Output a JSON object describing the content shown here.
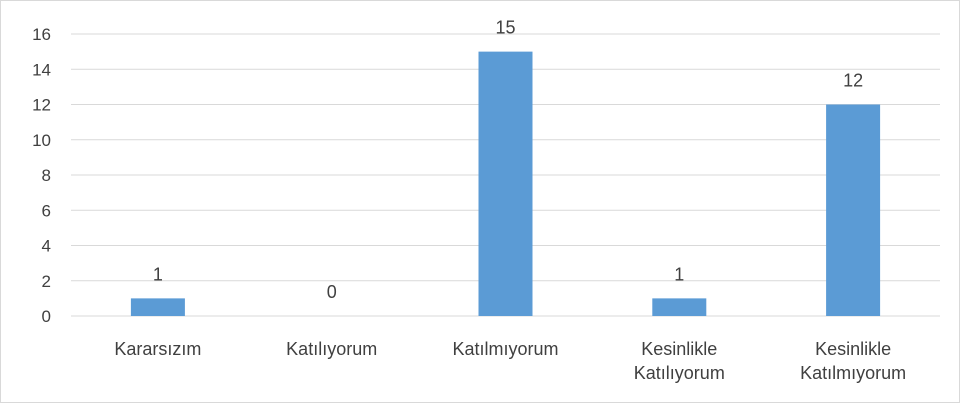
{
  "chart_data": {
    "type": "bar",
    "categories": [
      [
        "Kararsızım"
      ],
      [
        "Katılıyorum"
      ],
      [
        "Katılmıyorum"
      ],
      [
        "Kesinlikle",
        "Katılıyorum"
      ],
      [
        "Kesinlikle",
        "Katılmıyorum"
      ]
    ],
    "values": [
      1,
      0,
      15,
      1,
      12
    ],
    "data_labels": [
      "1",
      "0",
      "15",
      "1",
      "12"
    ],
    "ylim": [
      0,
      16
    ],
    "yticks": [
      0,
      2,
      4,
      6,
      8,
      10,
      12,
      14,
      16
    ],
    "grid": true,
    "bar_color": "#5b9bd5",
    "grid_color": "#d9d9d9"
  }
}
